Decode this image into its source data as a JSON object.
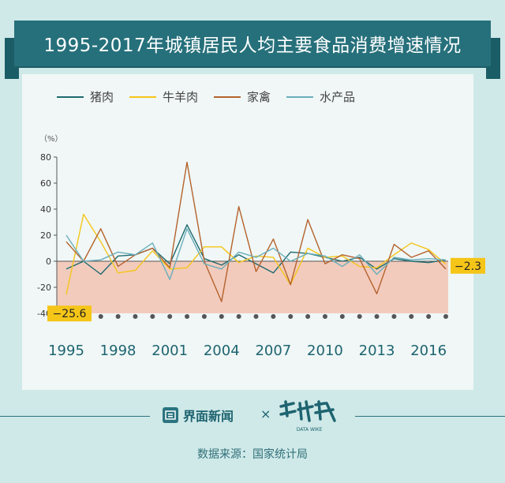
{
  "title": "1995-2017年城镇居民人均主要食品消费增速情况",
  "legend": [
    "猪肉",
    "牛羊肉",
    "家禽",
    "水产品"
  ],
  "chart_data": {
    "type": "line",
    "title": "1995-2017年城镇居民人均主要食品消费增速情况",
    "ylabel": "（%）",
    "ylim": [
      -40,
      80
    ],
    "yticks": [
      80,
      60,
      40,
      20,
      0,
      -20,
      -40
    ],
    "x": [
      1995,
      1996,
      1997,
      1998,
      1999,
      2000,
      2001,
      2002,
      2003,
      2004,
      2005,
      2006,
      2007,
      2008,
      2009,
      2010,
      2011,
      2012,
      2013,
      2014,
      2015,
      2016,
      2017
    ],
    "xticks": [
      1995,
      1998,
      2001,
      2004,
      2007,
      2010,
      2013,
      2016
    ],
    "series": [
      {
        "name": "猪肉",
        "color": "#1f6a6f",
        "values": [
          -6,
          0,
          -10,
          4,
          5,
          10,
          -2,
          28,
          2,
          -3,
          5,
          -2,
          -9,
          7,
          6,
          3,
          0,
          3,
          -6,
          2,
          0,
          -1,
          1
        ]
      },
      {
        "name": "牛羊肉",
        "color": "#f5c518",
        "values": [
          -25.6,
          36,
          15,
          -9,
          -7,
          8,
          -6,
          -5,
          11,
          11,
          -1,
          4,
          3,
          -18,
          10,
          3,
          4,
          -4,
          -5,
          5,
          14,
          9,
          -2.3
        ]
      },
      {
        "name": "家禽",
        "color": "#b5622d",
        "values": [
          15,
          0,
          25,
          -4,
          5,
          10,
          -5,
          76,
          0,
          -31,
          42,
          -8,
          17,
          -18,
          32,
          -2,
          5,
          2,
          -25,
          13,
          3,
          8,
          -6
        ]
      },
      {
        "name": "水产品",
        "color": "#6aaebb",
        "values": [
          20,
          0,
          1,
          7,
          5,
          14,
          -14,
          25,
          -2,
          -6,
          7,
          3,
          10,
          0,
          6,
          4,
          -4,
          5,
          -10,
          3,
          1,
          2,
          1
        ]
      }
    ],
    "annotations": [
      {
        "x": 1995,
        "label": "−25.6"
      },
      {
        "x": 2017,
        "label": "−2.3"
      }
    ],
    "negative_band_color": "#f2cbbd",
    "grid": false,
    "legend_position": "top"
  },
  "footer": {
    "brand_left": "界面新闻",
    "cross": "×",
    "brand_right_sub": "DATA WIKE",
    "source": "数据来源：国家统计局"
  }
}
